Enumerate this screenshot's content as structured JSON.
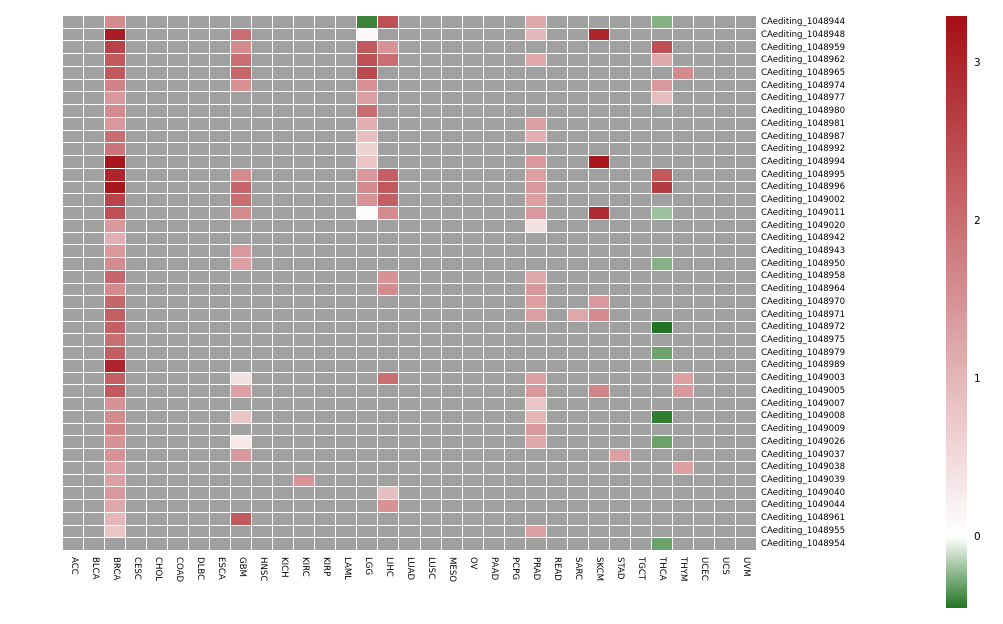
{
  "figure": {
    "background": "#ffffff",
    "grid_line_color": "#ffffff"
  },
  "legend": {
    "ticks": [
      {
        "label": "3",
        "value": 3
      },
      {
        "label": "2",
        "value": 2
      },
      {
        "label": "1",
        "value": 1
      },
      {
        "label": "0",
        "value": 0
      }
    ]
  },
  "chart_data": {
    "type": "heatmap",
    "title": "",
    "xlabel": "",
    "ylabel": "",
    "legend_position": "right",
    "grid": true,
    "columns": [
      "ACC",
      "BLCA",
      "BRCA",
      "CESC",
      "CHOL",
      "COAD",
      "DLBC",
      "ESCA",
      "GBM",
      "HNSC",
      "KICH",
      "KIRC",
      "KIRP",
      "LAML",
      "LGG",
      "LIHC",
      "LUAD",
      "LUSC",
      "MESO",
      "OV",
      "PAAD",
      "PCPG",
      "PRAD",
      "READ",
      "SARC",
      "SKCM",
      "STAD",
      "TGCT",
      "THCA",
      "THYM",
      "UCEC",
      "UCS",
      "UVM"
    ],
    "rows": [
      "CAediting_1048944",
      "CAediting_1048948",
      "CAediting_1048959",
      "CAediting_1048962",
      "CAediting_1048965",
      "CAediting_1048974",
      "CAediting_1048977",
      "CAediting_1048980",
      "CAediting_1048981",
      "CAediting_1048987",
      "CAediting_1048992",
      "CAediting_1048994",
      "CAediting_1048995",
      "CAediting_1048996",
      "CAediting_1049002",
      "CAediting_1049011",
      "CAediting_1049020",
      "CAediting_1048942",
      "CAediting_1048943",
      "CAediting_1048950",
      "CAediting_1048958",
      "CAediting_1048964",
      "CAediting_1048970",
      "CAediting_1048971",
      "CAediting_1048972",
      "CAediting_1048975",
      "CAediting_1048979",
      "CAediting_1048989",
      "CAediting_1049003",
      "CAediting_1049005",
      "CAediting_1049007",
      "CAediting_1049008",
      "CAediting_1049009",
      "CAediting_1049026",
      "CAediting_1049037",
      "CAediting_1049038",
      "CAediting_1049039",
      "CAediting_1049040",
      "CAediting_1049044",
      "CAediting_1048961",
      "CAediting_1048955",
      "CAediting_1048954"
    ],
    "color_scale": {
      "min": -0.45,
      "max": 3.3,
      "zero_color": "#ffffff",
      "max_color": "#a50f15",
      "min_color": "#227422",
      "na_color": "#a0a0a0"
    },
    "cells": [
      [
        "CAediting_1048944",
        "BRCA",
        1.6
      ],
      [
        "CAediting_1048944",
        "LGG",
        -0.4
      ],
      [
        "CAediting_1048944",
        "LIHC",
        2.4
      ],
      [
        "CAediting_1048944",
        "PRAD",
        1.2
      ],
      [
        "CAediting_1048944",
        "THCA",
        -0.25
      ],
      [
        "CAediting_1048948",
        "BRCA",
        3.1
      ],
      [
        "CAediting_1048948",
        "GBM",
        2.0
      ],
      [
        "CAediting_1048948",
        "LGG",
        0.1
      ],
      [
        "CAediting_1048948",
        "PRAD",
        1.0
      ],
      [
        "CAediting_1048948",
        "SKCM",
        3.0
      ],
      [
        "CAediting_1048959",
        "BRCA",
        2.6
      ],
      [
        "CAediting_1048959",
        "GBM",
        1.6
      ],
      [
        "CAediting_1048959",
        "LGG",
        2.3
      ],
      [
        "CAediting_1048959",
        "LIHC",
        1.5
      ],
      [
        "CAediting_1048959",
        "THCA",
        2.4
      ],
      [
        "CAediting_1048962",
        "BRCA",
        2.3
      ],
      [
        "CAediting_1048962",
        "GBM",
        2.0
      ],
      [
        "CAediting_1048962",
        "LGG",
        2.4
      ],
      [
        "CAediting_1048962",
        "LIHC",
        2.0
      ],
      [
        "CAediting_1048962",
        "PRAD",
        1.2
      ],
      [
        "CAediting_1048962",
        "THCA",
        1.2
      ],
      [
        "CAediting_1048965",
        "BRCA",
        2.3
      ],
      [
        "CAediting_1048965",
        "GBM",
        2.1
      ],
      [
        "CAediting_1048965",
        "LGG",
        2.5
      ],
      [
        "CAediting_1048965",
        "THYM",
        1.6
      ],
      [
        "CAediting_1048974",
        "BRCA",
        1.7
      ],
      [
        "CAediting_1048974",
        "GBM",
        1.5
      ],
      [
        "CAediting_1048974",
        "LGG",
        1.5
      ],
      [
        "CAediting_1048974",
        "THCA",
        1.4
      ],
      [
        "CAediting_1048977",
        "BRCA",
        1.4
      ],
      [
        "CAediting_1048977",
        "LGG",
        1.3
      ],
      [
        "CAediting_1048977",
        "THCA",
        0.9
      ],
      [
        "CAediting_1048980",
        "BRCA",
        1.6
      ],
      [
        "CAediting_1048980",
        "LGG",
        2.0
      ],
      [
        "CAediting_1048981",
        "BRCA",
        1.4
      ],
      [
        "CAediting_1048981",
        "LGG",
        1.1
      ],
      [
        "CAediting_1048981",
        "PRAD",
        1.3
      ],
      [
        "CAediting_1048987",
        "BRCA",
        2.0
      ],
      [
        "CAediting_1048987",
        "LGG",
        0.9
      ],
      [
        "CAediting_1048987",
        "PRAD",
        1.1
      ],
      [
        "CAediting_1048992",
        "BRCA",
        1.9
      ],
      [
        "CAediting_1048992",
        "LGG",
        0.6
      ],
      [
        "CAediting_1048994",
        "BRCA",
        3.2
      ],
      [
        "CAediting_1048994",
        "LGG",
        0.8
      ],
      [
        "CAediting_1048994",
        "PRAD",
        1.4
      ],
      [
        "CAediting_1048994",
        "SKCM",
        3.2
      ],
      [
        "CAediting_1048995",
        "BRCA",
        3.0
      ],
      [
        "CAediting_1048995",
        "GBM",
        1.6
      ],
      [
        "CAediting_1048995",
        "LGG",
        1.4
      ],
      [
        "CAediting_1048995",
        "LIHC",
        2.2
      ],
      [
        "CAediting_1048995",
        "PRAD",
        1.3
      ],
      [
        "CAediting_1048995",
        "THCA",
        2.3
      ],
      [
        "CAediting_1048996",
        "BRCA",
        3.2
      ],
      [
        "CAediting_1048996",
        "GBM",
        2.1
      ],
      [
        "CAediting_1048996",
        "LGG",
        1.6
      ],
      [
        "CAediting_1048996",
        "LIHC",
        2.3
      ],
      [
        "CAediting_1048996",
        "PRAD",
        1.4
      ],
      [
        "CAediting_1048996",
        "THCA",
        2.7
      ],
      [
        "CAediting_1049002",
        "BRCA",
        2.6
      ],
      [
        "CAediting_1049002",
        "GBM",
        2.0
      ],
      [
        "CAediting_1049002",
        "LGG",
        1.5
      ],
      [
        "CAediting_1049002",
        "LIHC",
        2.2
      ],
      [
        "CAediting_1049002",
        "PRAD",
        1.3
      ],
      [
        "CAediting_1049011",
        "BRCA",
        2.4
      ],
      [
        "CAediting_1049011",
        "GBM",
        1.6
      ],
      [
        "CAediting_1049011",
        "LGG",
        0.05
      ],
      [
        "CAediting_1049011",
        "LIHC",
        1.6
      ],
      [
        "CAediting_1049011",
        "PRAD",
        1.4
      ],
      [
        "CAediting_1049011",
        "SKCM",
        2.9
      ],
      [
        "CAediting_1049011",
        "THCA",
        -0.2
      ],
      [
        "CAediting_1049020",
        "BRCA",
        1.4
      ],
      [
        "CAediting_1049020",
        "PRAD",
        0.4
      ],
      [
        "CAediting_1048942",
        "BRCA",
        1.1
      ],
      [
        "CAediting_1048943",
        "BRCA",
        1.4
      ],
      [
        "CAediting_1048943",
        "GBM",
        1.4
      ],
      [
        "CAediting_1048950",
        "BRCA",
        1.6
      ],
      [
        "CAediting_1048950",
        "GBM",
        1.3
      ],
      [
        "CAediting_1048950",
        "THCA",
        -0.25
      ],
      [
        "CAediting_1048958",
        "BRCA",
        2.1
      ],
      [
        "CAediting_1048958",
        "LIHC",
        1.5
      ],
      [
        "CAediting_1048958",
        "PRAD",
        1.2
      ],
      [
        "CAediting_1048964",
        "BRCA",
        1.6
      ],
      [
        "CAediting_1048964",
        "LIHC",
        1.6
      ],
      [
        "CAediting_1048964",
        "PRAD",
        1.4
      ],
      [
        "CAediting_1048970",
        "BRCA",
        2.1
      ],
      [
        "CAediting_1048970",
        "PRAD",
        1.3
      ],
      [
        "CAediting_1048970",
        "SKCM",
        1.4
      ],
      [
        "CAediting_1048971",
        "BRCA",
        2.2
      ],
      [
        "CAediting_1048971",
        "PRAD",
        1.3
      ],
      [
        "CAediting_1048971",
        "SARC",
        1.2
      ],
      [
        "CAediting_1048971",
        "SKCM",
        1.6
      ],
      [
        "CAediting_1048972",
        "BRCA",
        2.2
      ],
      [
        "CAediting_1048972",
        "THCA",
        -0.45
      ],
      [
        "CAediting_1048975",
        "BRCA",
        2.0
      ],
      [
        "CAediting_1048979",
        "BRCA",
        2.2
      ],
      [
        "CAediting_1048979",
        "THCA",
        -0.3
      ],
      [
        "CAediting_1048989",
        "BRCA",
        3.0
      ],
      [
        "CAediting_1049003",
        "BRCA",
        2.2
      ],
      [
        "CAediting_1049003",
        "GBM",
        0.4
      ],
      [
        "CAediting_1049003",
        "LIHC",
        2.0
      ],
      [
        "CAediting_1049003",
        "PRAD",
        1.3
      ],
      [
        "CAediting_1049003",
        "THYM",
        1.3
      ],
      [
        "CAediting_1049005",
        "BRCA",
        2.3
      ],
      [
        "CAediting_1049005",
        "GBM",
        1.3
      ],
      [
        "CAediting_1049005",
        "PRAD",
        1.4
      ],
      [
        "CAediting_1049005",
        "SKCM",
        1.7
      ],
      [
        "CAediting_1049005",
        "THYM",
        1.4
      ],
      [
        "CAediting_1049007",
        "BRCA",
        1.5
      ],
      [
        "CAediting_1049007",
        "PRAD",
        0.8
      ],
      [
        "CAediting_1049008",
        "BRCA",
        1.6
      ],
      [
        "CAediting_1049008",
        "GBM",
        0.8
      ],
      [
        "CAediting_1049008",
        "PRAD",
        1.0
      ],
      [
        "CAediting_1049008",
        "THCA",
        -0.42
      ],
      [
        "CAediting_1049009",
        "BRCA",
        1.7
      ],
      [
        "CAediting_1049009",
        "PRAD",
        1.4
      ],
      [
        "CAediting_1049026",
        "BRCA",
        1.5
      ],
      [
        "CAediting_1049026",
        "GBM",
        0.3
      ],
      [
        "CAediting_1049026",
        "PRAD",
        1.2
      ],
      [
        "CAediting_1049026",
        "THCA",
        -0.3
      ],
      [
        "CAediting_1049037",
        "BRCA",
        1.5
      ],
      [
        "CAediting_1049037",
        "GBM",
        1.4
      ],
      [
        "CAediting_1049037",
        "STAD",
        1.3
      ],
      [
        "CAediting_1049038",
        "BRCA",
        1.3
      ],
      [
        "CAediting_1049038",
        "THYM",
        1.3
      ],
      [
        "CAediting_1049039",
        "BRCA",
        1.3
      ],
      [
        "CAediting_1049039",
        "KIRC",
        1.5
      ],
      [
        "CAediting_1049040",
        "BRCA",
        1.4
      ],
      [
        "CAediting_1049040",
        "LIHC",
        0.9
      ],
      [
        "CAediting_1049044",
        "BRCA",
        1.2
      ],
      [
        "CAediting_1049044",
        "LIHC",
        1.5
      ],
      [
        "CAediting_1048961",
        "BRCA",
        1.0
      ],
      [
        "CAediting_1048961",
        "GBM",
        2.3
      ],
      [
        "CAediting_1048955",
        "BRCA",
        0.8
      ],
      [
        "CAediting_1048955",
        "PRAD",
        1.3
      ],
      [
        "CAediting_1048954",
        "THCA",
        -0.3
      ]
    ]
  }
}
